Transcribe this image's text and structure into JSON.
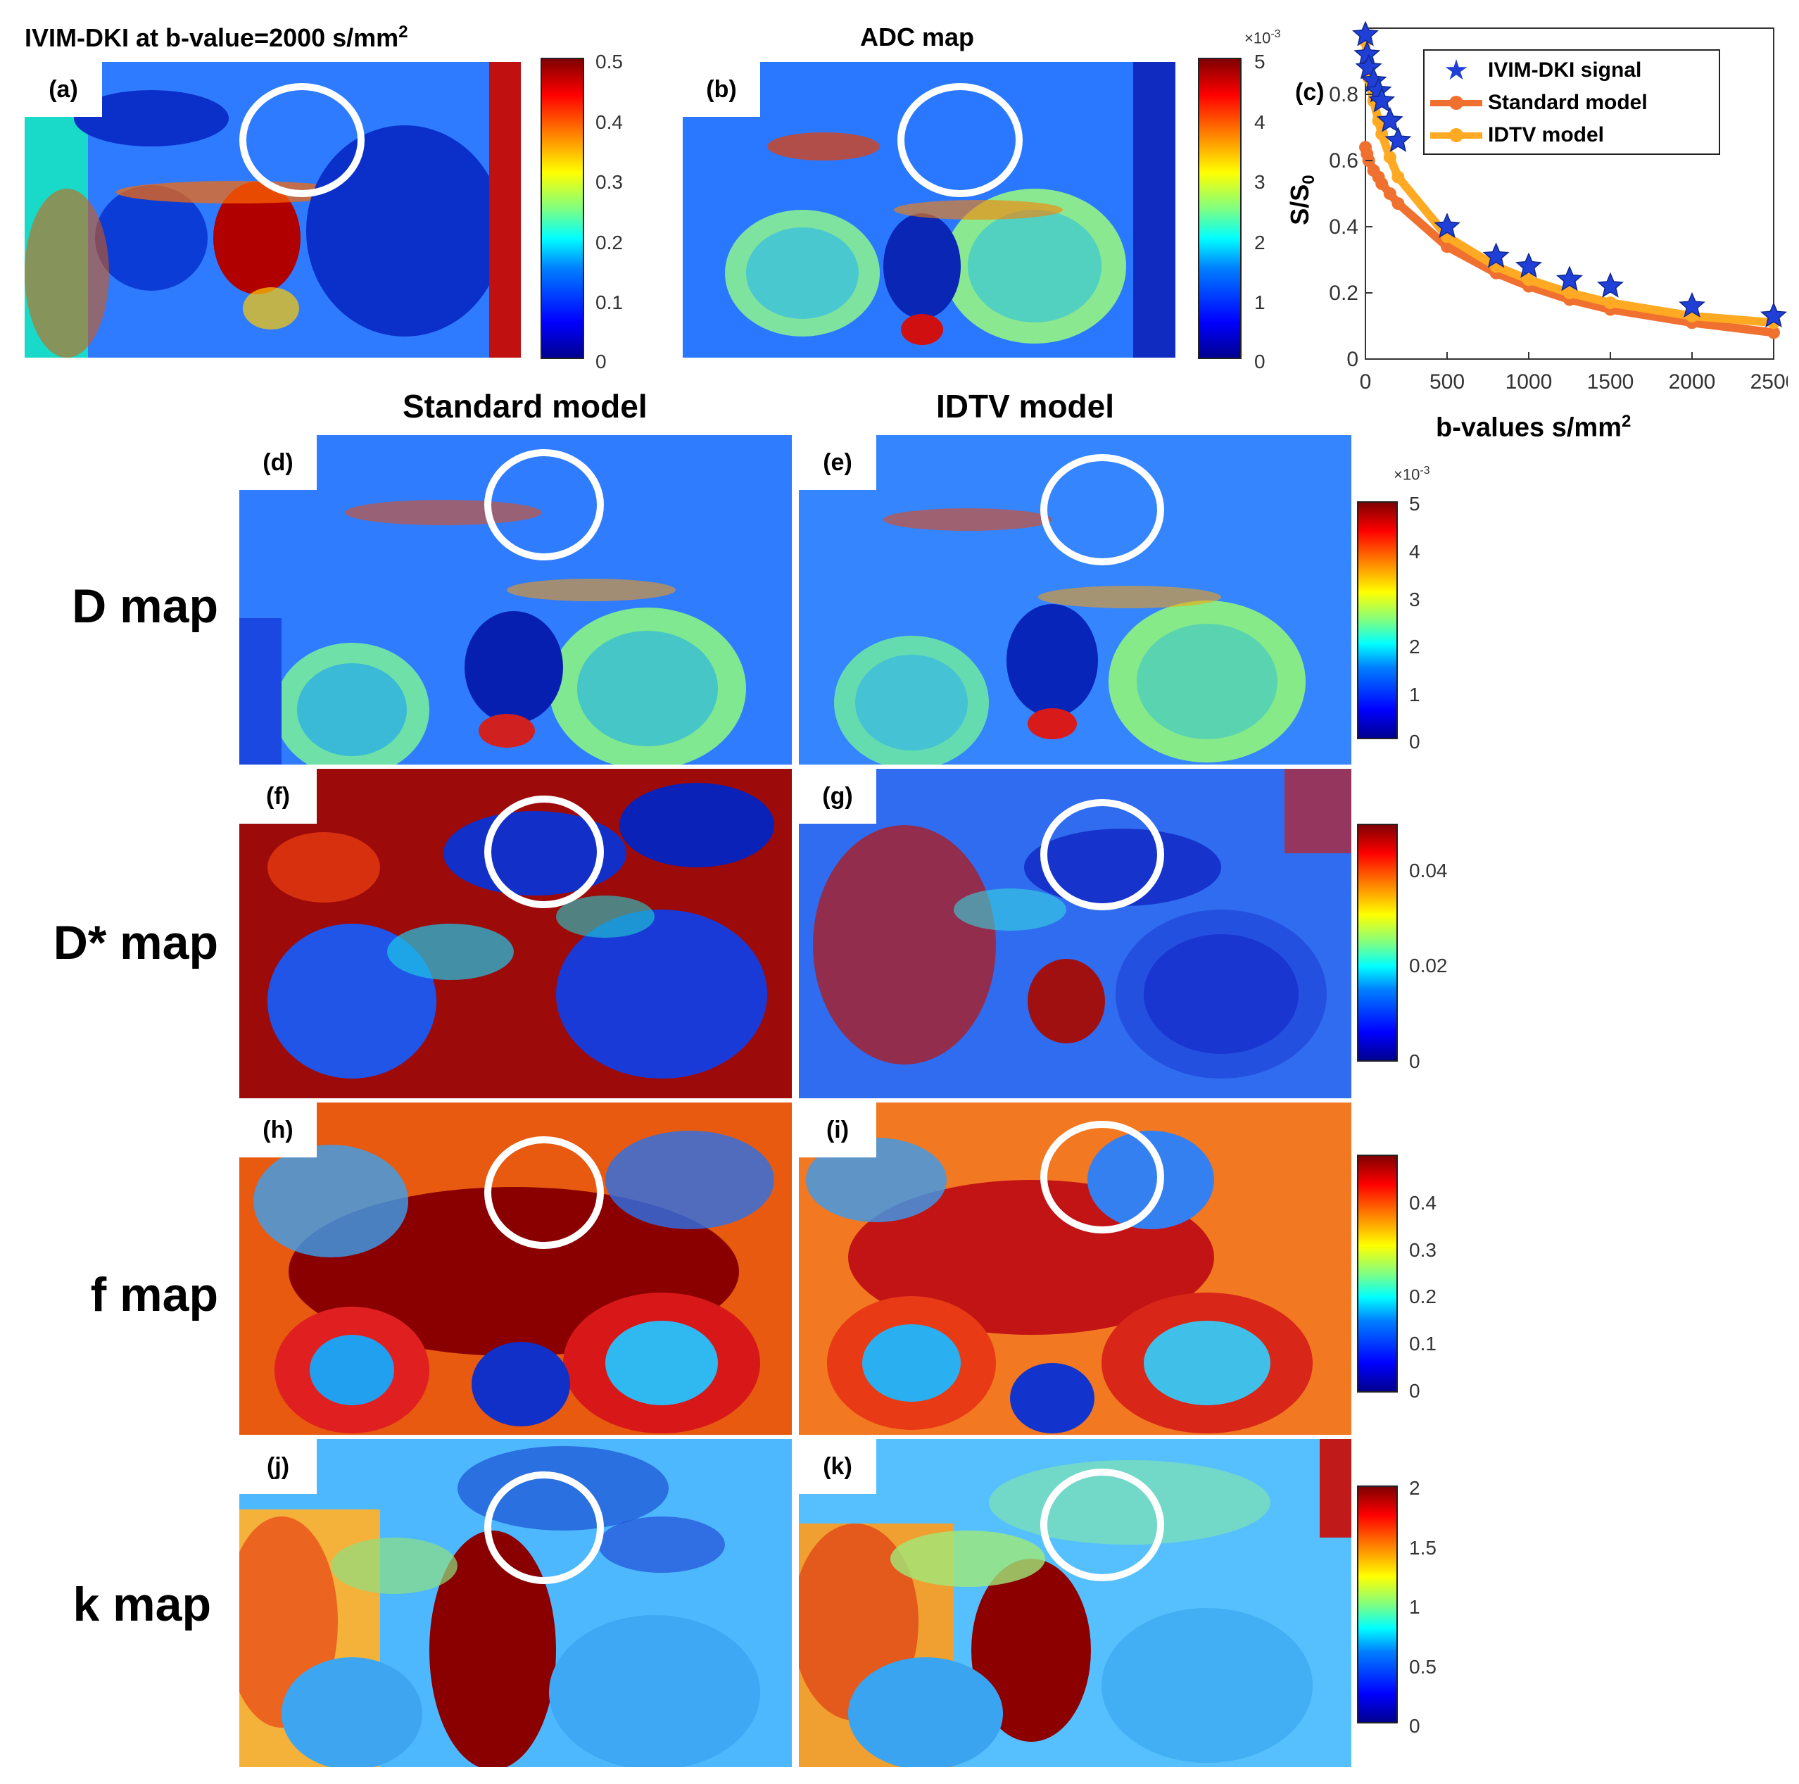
{
  "header": {
    "title_a": "IVIM-DKI at b-value=2000 s/mm",
    "title_a_sup": "2",
    "title_b": "ADC map",
    "col_standard": "Standard model",
    "col_idtv": "IDTV model"
  },
  "rows": {
    "d": "D map",
    "dstar": "D* map",
    "f": "f map",
    "k": "k map"
  },
  "panels": {
    "a": "(a)",
    "b": "(b)",
    "c": "(c)",
    "d": "(d)",
    "e": "(e)",
    "f": "(f)",
    "g": "(g)",
    "h": "(h)",
    "i": "(i)",
    "j": "(j)",
    "k": "(k)"
  },
  "colorbars": {
    "a": {
      "ticks": [
        "0.5",
        "0.4",
        "0.3",
        "0.2",
        "0.1",
        "0"
      ],
      "range": [
        0,
        0.5
      ]
    },
    "b": {
      "ticks": [
        "5",
        "4",
        "3",
        "2",
        "1",
        "0"
      ],
      "range": [
        0,
        5
      ],
      "exponent": "×10",
      "exponent_sup": "-3"
    },
    "d": {
      "ticks": [
        "5",
        "4",
        "3",
        "2",
        "1",
        "0"
      ],
      "range": [
        0,
        5
      ],
      "exponent": "×10",
      "exponent_sup": "-3"
    },
    "f": {
      "ticks": [
        "0.04",
        "0.02",
        "0"
      ],
      "range": [
        0,
        0.05
      ]
    },
    "h": {
      "ticks": [
        "0.4",
        "0.3",
        "0.2",
        "0.1",
        "0"
      ],
      "range": [
        0,
        0.5
      ]
    },
    "j": {
      "ticks": [
        "2",
        "1.5",
        "1",
        "0.5",
        "0"
      ],
      "range": [
        0,
        2
      ]
    }
  },
  "chart_data": {
    "type": "line",
    "xlabel": "b-values s/mm",
    "xlabel_sup": "2",
    "ylabel": "S/S",
    "ylabel_sub": "0",
    "xlim": [
      0,
      2500
    ],
    "ylim": [
      0,
      1
    ],
    "xticks": [
      0,
      500,
      1000,
      1500,
      2000,
      2500
    ],
    "yticks": [
      0,
      0.2,
      0.4,
      0.6,
      0.8
    ],
    "legend_position": "top-right",
    "series": [
      {
        "name": "IVIM-DKI signal",
        "style": "star",
        "color": "#1f3fd6",
        "x": [
          0,
          10,
          20,
          50,
          80,
          100,
          150,
          200,
          500,
          800,
          1000,
          1250,
          1500,
          2000,
          2500
        ],
        "y": [
          0.98,
          0.92,
          0.88,
          0.84,
          0.81,
          0.78,
          0.72,
          0.66,
          0.4,
          0.31,
          0.28,
          0.24,
          0.22,
          0.16,
          0.13
        ]
      },
      {
        "name": "Standard model",
        "style": "line-marker",
        "color": "#f07030",
        "x": [
          0,
          10,
          20,
          50,
          80,
          100,
          150,
          200,
          500,
          800,
          1000,
          1250,
          1500,
          2000,
          2500
        ],
        "y": [
          0.64,
          0.62,
          0.6,
          0.57,
          0.55,
          0.53,
          0.5,
          0.47,
          0.34,
          0.26,
          0.22,
          0.18,
          0.15,
          0.11,
          0.08
        ]
      },
      {
        "name": "IDTV model",
        "style": "line-marker",
        "color": "#ffaa22",
        "x": [
          0,
          10,
          20,
          50,
          80,
          100,
          150,
          200,
          500,
          800,
          1000,
          1250,
          1500,
          2000,
          2500
        ],
        "y": [
          0.96,
          0.9,
          0.85,
          0.78,
          0.72,
          0.68,
          0.61,
          0.55,
          0.37,
          0.28,
          0.24,
          0.2,
          0.17,
          0.13,
          0.11
        ]
      }
    ]
  }
}
